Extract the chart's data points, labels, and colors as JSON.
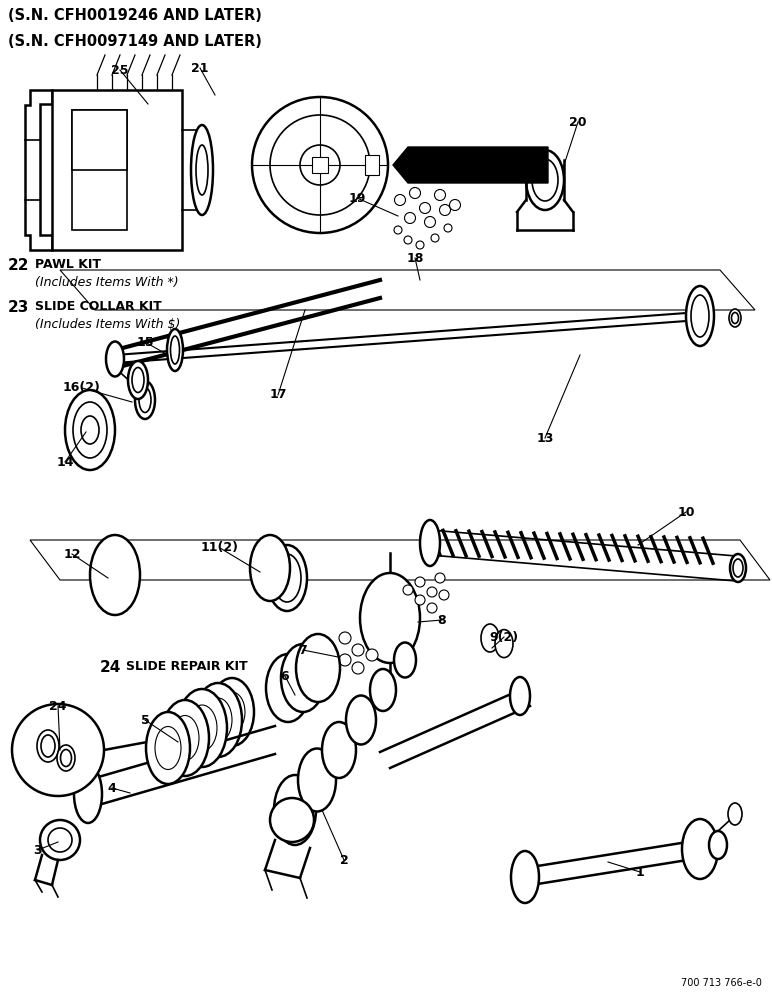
{
  "background_color": "#ffffff",
  "figure_width": 7.72,
  "figure_height": 10.0,
  "dpi": 100,
  "header_lines": [
    "(S.N. CFH0019246 AND LATER)",
    "(S.N. CFH0097149 AND LATER)"
  ],
  "footer_text": "700 713 766-e-0",
  "footer_fontsize": 7
}
